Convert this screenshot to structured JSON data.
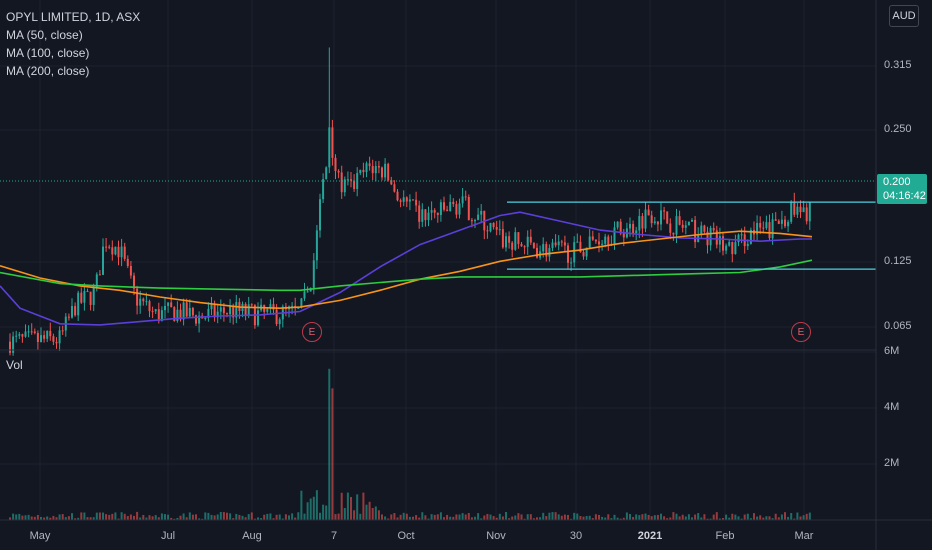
{
  "legend": {
    "symbol": "OPYL LIMITED, 1D, ASX",
    "ma50": "MA (50, close)",
    "ma100": "MA (100, close)",
    "ma200": "MA (200, close)"
  },
  "currency_badge": "AUD",
  "last_price": {
    "value": "0.200",
    "countdown": "04:16:42"
  },
  "volume_label": "Vol",
  "price_axis": [
    "0.315",
    "0.250",
    "0.125",
    "0.065"
  ],
  "volume_axis": [
    "6M",
    "4M",
    "2M"
  ],
  "time_axis": [
    {
      "label": "May",
      "bold": false
    },
    {
      "label": "Jul",
      "bold": false
    },
    {
      "label": "Aug",
      "bold": false
    },
    {
      "label": "7",
      "bold": false
    },
    {
      "label": "Oct",
      "bold": false
    },
    {
      "label": "Nov",
      "bold": false
    },
    {
      "label": "30",
      "bold": false
    },
    {
      "label": "2021",
      "bold": true
    },
    {
      "label": "Feb",
      "bold": false
    },
    {
      "label": "Mar",
      "bold": false
    }
  ],
  "earnings_markers": [
    "E",
    "E"
  ],
  "colors": {
    "up": "#26a69a",
    "down": "#ef5350",
    "ma50": "#5b3fd8",
    "ma100": "#f7931a",
    "ma200": "#2ecc40",
    "hline": "#4dd0e1",
    "grid": "#1e222d"
  },
  "chart_data": {
    "type": "candlestick",
    "title": "OPYL LIMITED, 1D, ASX",
    "price_range": [
      0.04,
      0.36
    ],
    "volume_range": [
      0,
      6000000
    ],
    "horizontal_lines": [
      0.193,
      0.133
    ],
    "series": [
      {
        "name": "MA (50, close)",
        "points": [
          [
            0,
            0.118
          ],
          [
            20,
            0.098
          ],
          [
            60,
            0.084
          ],
          [
            100,
            0.083
          ],
          [
            140,
            0.086
          ],
          [
            180,
            0.089
          ],
          [
            220,
            0.091
          ],
          [
            260,
            0.092
          ],
          [
            300,
            0.095
          ],
          [
            340,
            0.112
          ],
          [
            380,
            0.135
          ],
          [
            420,
            0.155
          ],
          [
            460,
            0.168
          ],
          [
            500,
            0.181
          ],
          [
            520,
            0.184
          ],
          [
            560,
            0.176
          ],
          [
            600,
            0.168
          ],
          [
            640,
            0.164
          ],
          [
            680,
            0.161
          ],
          [
            720,
            0.16
          ],
          [
            760,
            0.158
          ],
          [
            800,
            0.16
          ],
          [
            812,
            0.16
          ]
        ]
      },
      {
        "name": "MA (100, close)",
        "points": [
          [
            0,
            0.136
          ],
          [
            40,
            0.125
          ],
          [
            80,
            0.118
          ],
          [
            120,
            0.114
          ],
          [
            160,
            0.108
          ],
          [
            200,
            0.103
          ],
          [
            240,
            0.099
          ],
          [
            280,
            0.098
          ],
          [
            300,
            0.099
          ],
          [
            340,
            0.105
          ],
          [
            380,
            0.114
          ],
          [
            420,
            0.124
          ],
          [
            460,
            0.131
          ],
          [
            500,
            0.14
          ],
          [
            540,
            0.146
          ],
          [
            580,
            0.15
          ],
          [
            620,
            0.156
          ],
          [
            660,
            0.16
          ],
          [
            700,
            0.164
          ],
          [
            740,
            0.167
          ],
          [
            780,
            0.165
          ],
          [
            812,
            0.162
          ]
        ]
      },
      {
        "name": "MA (200, close)",
        "points": [
          [
            0,
            0.13
          ],
          [
            60,
            0.12
          ],
          [
            100,
            0.118
          ],
          [
            160,
            0.116
          ],
          [
            220,
            0.115
          ],
          [
            280,
            0.114
          ],
          [
            300,
            0.114
          ],
          [
            340,
            0.118
          ],
          [
            380,
            0.121
          ],
          [
            420,
            0.124
          ],
          [
            460,
            0.126
          ],
          [
            500,
            0.126
          ],
          [
            540,
            0.126
          ],
          [
            580,
            0.126
          ],
          [
            620,
            0.127
          ],
          [
            660,
            0.128
          ],
          [
            700,
            0.129
          ],
          [
            740,
            0.13
          ],
          [
            780,
            0.135
          ],
          [
            812,
            0.141
          ]
        ]
      }
    ]
  }
}
